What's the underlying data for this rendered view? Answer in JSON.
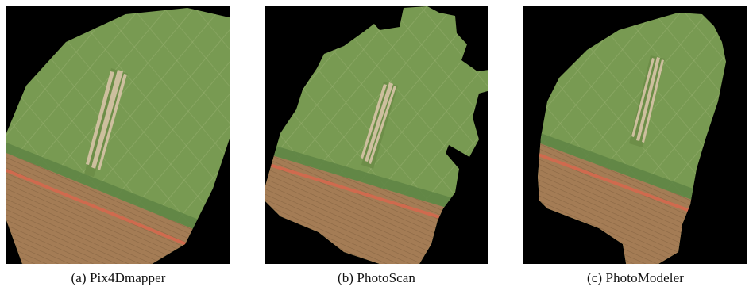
{
  "figure": {
    "panels": [
      {
        "id": "a",
        "caption": "(a)  Pix4Dmapper"
      },
      {
        "id": "b",
        "caption": "(b)  PhotoScan"
      },
      {
        "id": "c",
        "caption": "(c)  PhotoModeler"
      }
    ]
  },
  "colors": {
    "background": "#000000",
    "field_green": "#789a52",
    "field_green_dark": "#5e8444",
    "soil": "#a07a52",
    "road": "#c9664b",
    "track": "#cdbf9e"
  }
}
